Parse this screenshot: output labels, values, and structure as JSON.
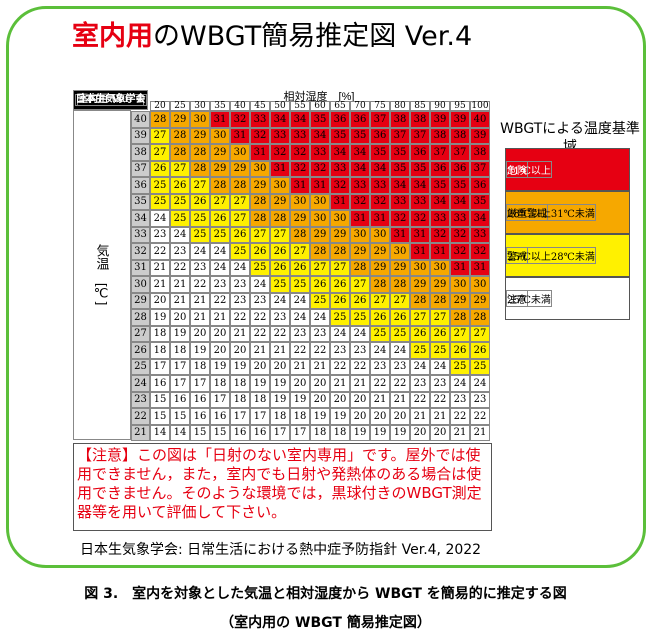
{
  "title": {
    "highlight": "室内用",
    "rest": "のWBGT簡易推定図 Ver.4"
  },
  "table": {
    "corner_top": "室内用 Ver. 4",
    "corner_bottom": "日本生気象学会",
    "humidity_label": "相対湿度　[%]",
    "temp_label": "気温　[℃]",
    "humidity": [
      20,
      25,
      30,
      35,
      40,
      45,
      50,
      55,
      60,
      65,
      70,
      75,
      80,
      85,
      90,
      95,
      100
    ],
    "rows": [
      {
        "temp": 40,
        "values": [
          28,
          29,
          30,
          31,
          32,
          33,
          34,
          34,
          35,
          36,
          36,
          37,
          38,
          38,
          39,
          39,
          40
        ]
      },
      {
        "temp": 39,
        "values": [
          27,
          28,
          29,
          30,
          31,
          32,
          33,
          33,
          34,
          35,
          35,
          36,
          37,
          37,
          38,
          38,
          39
        ]
      },
      {
        "temp": 38,
        "values": [
          27,
          28,
          28,
          29,
          30,
          31,
          32,
          32,
          33,
          34,
          34,
          35,
          35,
          36,
          37,
          37,
          38
        ]
      },
      {
        "temp": 37,
        "values": [
          26,
          27,
          28,
          29,
          29,
          30,
          31,
          32,
          32,
          33,
          34,
          34,
          35,
          35,
          36,
          36,
          37
        ]
      },
      {
        "temp": 36,
        "values": [
          25,
          26,
          27,
          28,
          28,
          29,
          30,
          31,
          31,
          32,
          33,
          33,
          34,
          34,
          35,
          35,
          36
        ]
      },
      {
        "temp": 35,
        "values": [
          25,
          25,
          26,
          27,
          27,
          28,
          29,
          30,
          30,
          31,
          32,
          32,
          33,
          33,
          34,
          34,
          35
        ]
      },
      {
        "temp": 34,
        "values": [
          24,
          25,
          25,
          26,
          27,
          28,
          28,
          29,
          30,
          30,
          31,
          31,
          32,
          32,
          33,
          33,
          34
        ]
      },
      {
        "temp": 33,
        "values": [
          23,
          24,
          25,
          25,
          26,
          27,
          27,
          28,
          29,
          29,
          30,
          30,
          31,
          31,
          32,
          32,
          33
        ]
      },
      {
        "temp": 32,
        "values": [
          22,
          23,
          24,
          24,
          25,
          26,
          26,
          27,
          28,
          28,
          29,
          29,
          30,
          31,
          31,
          32,
          32
        ]
      },
      {
        "temp": 31,
        "values": [
          21,
          22,
          23,
          24,
          24,
          25,
          26,
          26,
          27,
          27,
          28,
          29,
          29,
          30,
          30,
          31,
          31
        ]
      },
      {
        "temp": 30,
        "values": [
          21,
          21,
          22,
          23,
          23,
          24,
          25,
          25,
          26,
          26,
          27,
          28,
          28,
          29,
          29,
          30,
          30
        ]
      },
      {
        "temp": 29,
        "values": [
          20,
          21,
          21,
          22,
          23,
          23,
          24,
          24,
          25,
          26,
          26,
          27,
          27,
          28,
          28,
          29,
          29
        ]
      },
      {
        "temp": 28,
        "values": [
          19,
          20,
          21,
          21,
          22,
          22,
          23,
          24,
          24,
          25,
          25,
          26,
          26,
          27,
          27,
          28,
          28
        ]
      },
      {
        "temp": 27,
        "values": [
          18,
          19,
          20,
          20,
          21,
          22,
          22,
          23,
          23,
          24,
          24,
          25,
          25,
          26,
          26,
          27,
          27
        ]
      },
      {
        "temp": 26,
        "values": [
          18,
          18,
          19,
          20,
          20,
          21,
          21,
          22,
          22,
          23,
          23,
          24,
          24,
          25,
          25,
          26,
          26
        ]
      },
      {
        "temp": 25,
        "values": [
          17,
          17,
          18,
          19,
          19,
          20,
          20,
          21,
          21,
          22,
          22,
          23,
          23,
          24,
          24,
          25,
          25
        ]
      },
      {
        "temp": 24,
        "values": [
          16,
          17,
          17,
          18,
          18,
          19,
          19,
          20,
          20,
          21,
          21,
          22,
          22,
          23,
          23,
          24,
          24
        ]
      },
      {
        "temp": 23,
        "values": [
          15,
          16,
          16,
          17,
          18,
          18,
          19,
          19,
          20,
          20,
          20,
          21,
          21,
          22,
          22,
          23,
          23
        ]
      },
      {
        "temp": 22,
        "values": [
          15,
          15,
          16,
          16,
          17,
          17,
          18,
          18,
          19,
          19,
          20,
          20,
          20,
          21,
          21,
          22,
          22
        ]
      },
      {
        "temp": 21,
        "values": [
          14,
          14,
          15,
          15,
          16,
          16,
          17,
          17,
          18,
          18,
          19,
          19,
          19,
          20,
          20,
          21,
          21
        ]
      }
    ]
  },
  "legend": {
    "title": "WBGTによる温度基準域",
    "levels": [
      {
        "name": "危険",
        "range": "31℃以上",
        "color": "#e60012",
        "min": 31
      },
      {
        "name": "厳重警戒",
        "range": "28℃以上31℃未満",
        "color": "#f6a800",
        "min": 28
      },
      {
        "name": "警戒",
        "range": "25℃以上28℃未満",
        "color": "#fff100",
        "min": 25
      },
      {
        "name": "注意",
        "range": "25℃未満",
        "color": "#ffffff",
        "min": 0
      }
    ]
  },
  "note": "【注意】この図は「日射のない室内専用」です。屋外では使用できません，また，室内でも日射や発熱体のある場合は使用できません。そのような環境では，黒球付きのWBGT測定器等を用いて評価して下さい。",
  "source": "日本生気象学会: 日常生活における熱中症予防指針 Ver.4, 2022",
  "caption": {
    "line1": "図 3.　室内を対象とした気温と相対湿度から WBGT を簡易的に推定する図",
    "line2": "（室内用の WBGT 簡易推定図）"
  }
}
